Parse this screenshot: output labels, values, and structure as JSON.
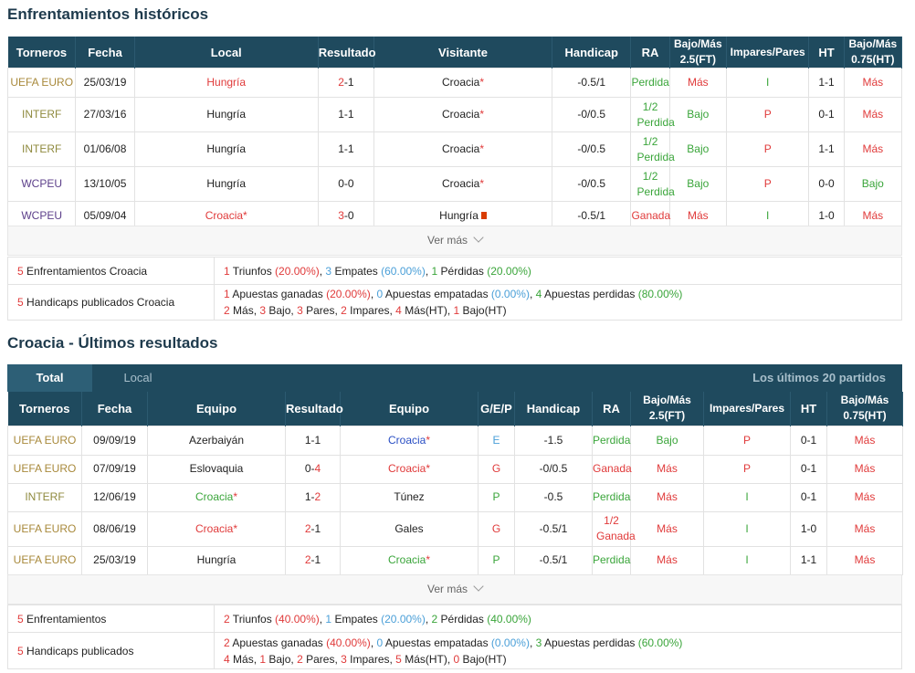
{
  "h2h": {
    "title": "Enfrentamientos históricos",
    "headers": [
      "Torneros",
      "Fecha",
      "Local",
      "Resultado",
      "Visitante",
      "Handicap",
      "RA",
      "Bajo/Más 2.5(FT)",
      "Impares/Pares",
      "HT",
      "Bajo/Más 0.75(HT)"
    ],
    "rows": [
      {
        "torneo": "UEFA EURO",
        "fecha": "25/03/19",
        "local": "Hungría",
        "res_a": "2",
        "res_b": "1",
        "visitante": "Croacia",
        "handicap": "-0.5/1",
        "ra": "Perdida",
        "bm": "Más",
        "ip": "I",
        "ht": "1-1",
        "bm075": "Más"
      },
      {
        "torneo": "INTERF",
        "fecha": "27/03/16",
        "local": "Hungría",
        "res_a": "1",
        "res_b": "1",
        "visitante": "Croacia",
        "handicap": "-0/0.5",
        "ra": "1/2 Perdida",
        "bm": "Bajo",
        "ip": "P",
        "ht": "0-1",
        "bm075": "Más"
      },
      {
        "torneo": "INTERF",
        "fecha": "01/06/08",
        "local": "Hungría",
        "res_a": "1",
        "res_b": "1",
        "visitante": "Croacia",
        "handicap": "-0/0.5",
        "ra": "1/2 Perdida",
        "bm": "Bajo",
        "ip": "P",
        "ht": "1-1",
        "bm075": "Más"
      },
      {
        "torneo": "WCPEU",
        "fecha": "13/10/05",
        "local": "Hungría",
        "res_a": "0",
        "res_b": "0",
        "visitante": "Croacia",
        "handicap": "-0/0.5",
        "ra": "1/2 Perdida",
        "bm": "Bajo",
        "ip": "P",
        "ht": "0-0",
        "bm075": "Bajo"
      },
      {
        "torneo": "WCPEU",
        "fecha": "05/09/04",
        "local": "Croacia",
        "res_a": "3",
        "res_b": "0",
        "visitante": "Hungría",
        "handicap": "-0.5/1",
        "ra": "Ganada",
        "bm": "Más",
        "ip": "I",
        "ht": "1-0",
        "bm075": "Más"
      }
    ],
    "ver_mas": "Ver más",
    "summary1_label": "Enfrentamientos Croacia",
    "summary1_count": "5",
    "summary1": {
      "w": "1",
      "w_lab": " Triunfos ",
      "w_pct": "(20.00%)",
      "d": "3",
      "d_lab": " Empates ",
      "d_pct": "(60.00%)",
      "l": "1",
      "l_lab": " Pérdidas ",
      "l_pct": "(20.00%)"
    },
    "summary2_label": "Handicaps publicados Croacia",
    "summary2_count": "5",
    "summary2": {
      "w": "1",
      "w_lab": " Apuestas ganadas ",
      "w_pct": "(20.00%)",
      "d": "0",
      "d_lab": " Apuestas empatadas ",
      "d_pct": "(0.00%)",
      "l": "4",
      "l_lab": " Apuestas perdidas ",
      "l_pct": "(80.00%)",
      "mas": "2",
      "mas_lab": " Más, ",
      "bajo": "3",
      "bajo_lab": " Bajo, ",
      "pares": "3",
      "pares_lab": " Pares, ",
      "impares": "2",
      "impares_lab": " Impares, ",
      "masht": "4",
      "masht_lab": " Más(HT), ",
      "bajoht": "1",
      "bajoht_lab": " Bajo(HT)"
    }
  },
  "recent": {
    "title": "Croacia - Últimos resultados",
    "tabs": {
      "total": "Total",
      "local": "Local",
      "right": "Los últimos 20 partidos"
    },
    "headers": [
      "Torneros",
      "Fecha",
      "Equipo",
      "Resultado",
      "Equipo",
      "G/E/P",
      "Handicap",
      "RA",
      "Bajo/Más 2.5(FT)",
      "Impares/Pares",
      "HT",
      "Bajo/Más 0.75(HT)"
    ],
    "rows": [
      {
        "torneo": "UEFA EURO",
        "fecha": "09/09/19",
        "home": "Azerbaiyán",
        "res_a": "1",
        "res_b": "1",
        "away": "Croacia",
        "gep": "E",
        "handicap": "-1.5",
        "ra": "Perdida",
        "bm": "Bajo",
        "ip": "P",
        "ht": "0-1",
        "bm075": "Más"
      },
      {
        "torneo": "UEFA EURO",
        "fecha": "07/09/19",
        "home": "Eslovaquia",
        "res_a": "0",
        "res_b": "4",
        "away": "Croacia",
        "gep": "G",
        "handicap": "-0/0.5",
        "ra": "Ganada",
        "bm": "Más",
        "ip": "P",
        "ht": "0-1",
        "bm075": "Más"
      },
      {
        "torneo": "INTERF",
        "fecha": "12/06/19",
        "home": "Croacia",
        "res_a": "1",
        "res_b": "2",
        "away": "Túnez",
        "gep": "P",
        "handicap": "-0.5",
        "ra": "Perdida",
        "bm": "Más",
        "ip": "I",
        "ht": "0-1",
        "bm075": "Más"
      },
      {
        "torneo": "UEFA EURO",
        "fecha": "08/06/19",
        "home": "Croacia",
        "res_a": "2",
        "res_b": "1",
        "away": "Gales",
        "gep": "G",
        "handicap": "-0.5/1",
        "ra": "1/2 Ganada",
        "bm": "Más",
        "ip": "I",
        "ht": "1-0",
        "bm075": "Más"
      },
      {
        "torneo": "UEFA EURO",
        "fecha": "25/03/19",
        "home": "Hungría",
        "res_a": "2",
        "res_b": "1",
        "away": "Croacia",
        "gep": "P",
        "handicap": "-0.5/1",
        "ra": "Perdida",
        "bm": "Más",
        "ip": "I",
        "ht": "1-1",
        "bm075": "Más"
      }
    ],
    "ver_mas": "Ver más",
    "summary1_label": "Enfrentamientos",
    "summary1_count": "5",
    "summary1": {
      "w": "2",
      "w_lab": " Triunfos ",
      "w_pct": "(40.00%)",
      "d": "1",
      "d_lab": " Empates ",
      "d_pct": "(20.00%)",
      "l": "2",
      "l_lab": " Pérdidas ",
      "l_pct": "(40.00%)"
    },
    "summary2_label": "Handicaps publicados",
    "summary2_count": "5",
    "summary2": {
      "w": "2",
      "w_lab": " Apuestas ganadas ",
      "w_pct": "(40.00%)",
      "d": "0",
      "d_lab": " Apuestas empatadas ",
      "d_pct": "(0.00%)",
      "l": "3",
      "l_lab": " Apuestas perdidas ",
      "l_pct": "(60.00%)",
      "mas": "4",
      "mas_lab": " Más, ",
      "bajo": "1",
      "bajo_lab": " Bajo, ",
      "pares": "2",
      "pares_lab": " Pares, ",
      "impares": "3",
      "impares_lab": " Impares, ",
      "masht": "5",
      "masht_lab": " Más(HT), ",
      "bajoht": "0",
      "bajoht_lab": " Bajo(HT)"
    }
  },
  "colors": {
    "header_bg": "#1f4a5e",
    "red": "#e03a3a",
    "green": "#3aa53a",
    "blue": "#2a4fc4",
    "light_blue": "#4a9fd8"
  },
  "icons": {
    "star": "*",
    "flag": "flag-icon",
    "chevron": "chevron-down-icon"
  }
}
